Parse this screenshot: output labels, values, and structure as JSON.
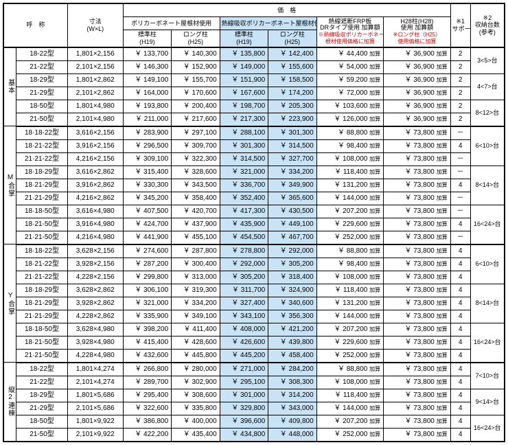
{
  "headers": {
    "name": "呼　称",
    "dim": "寸法\n(W×L)",
    "price": "価　格",
    "poly": "ポリカーボネート屋根材使用",
    "heat": "熱線吸収ポリカーボネート屋根材使用",
    "std": "標準柱\n(H19)",
    "long": "ロング柱\n(H25)",
    "frp": "熱線遮断FRP板\nDRタイプ使用 加算額",
    "frp_note": "※熱線吸収ポリカーボネート屋\n根材使用価格に加算",
    "h28": "H28柱(H28)\n使用 加算額",
    "h28_note": "※ロング柱（H25）\n使用価格に加算",
    "support": "※1\nサポート数",
    "storage": "※2\n収納台数\n(参考)"
  },
  "groups": [
    {
      "label": "基本",
      "storage_spans": [
        [
          2,
          "3<5>台"
        ],
        [
          2,
          "4<7>台"
        ],
        [
          2,
          "8<12>台"
        ]
      ],
      "rows": [
        [
          "18-22型",
          "1,801×2,156",
          "133,700",
          "140,300",
          "135,800",
          "142,400",
          "44,400",
          "36,900",
          "2"
        ],
        [
          "21-22型",
          "2,101×2,156",
          "146,300",
          "152,900",
          "149,000",
          "155,600",
          "54,000",
          "36,900",
          "2"
        ],
        [
          "18-29型",
          "1,801×2,862",
          "149,100",
          "155,700",
          "151,900",
          "158,500",
          "59,200",
          "36,900",
          "2"
        ],
        [
          "21-29型",
          "2,101×2,862",
          "164,000",
          "170,600",
          "167,600",
          "174,200",
          "72,000",
          "36,900",
          "2"
        ],
        [
          "18-50型",
          "1,801×4,980",
          "193,800",
          "200,400",
          "198,700",
          "205,300",
          "103,600",
          "36,900",
          "2"
        ],
        [
          "21-50型",
          "2,101×4,980",
          "211,000",
          "217,600",
          "217,300",
          "223,900",
          "126,000",
          "36,900",
          "2"
        ]
      ]
    },
    {
      "label": "M合掌",
      "storage_spans": [
        [
          3,
          "6<10>台"
        ],
        [
          3,
          "8<14>台"
        ],
        [
          3,
          "16<24>台"
        ]
      ],
      "rows": [
        [
          "18·18-22型",
          "3,616×2,156",
          "283,900",
          "297,100",
          "288,100",
          "301,300",
          "88,800",
          "73,800",
          "－"
        ],
        [
          "18·21-22型",
          "3,916×2,156",
          "296,500",
          "309,700",
          "301,300",
          "314,500",
          "98,400",
          "73,800",
          "4"
        ],
        [
          "21·21-22型",
          "4,216×2,156",
          "309,100",
          "322,300",
          "314,500",
          "327,700",
          "108,000",
          "73,800",
          "－"
        ],
        [
          "18·18-29型",
          "3,616×2,862",
          "315,400",
          "328,600",
          "321,000",
          "334,200",
          "118,400",
          "73,800",
          "－"
        ],
        [
          "18·21-29型",
          "3,916×2,862",
          "330,300",
          "343,500",
          "336,700",
          "349,900",
          "131,200",
          "73,800",
          "4"
        ],
        [
          "21·21-29型",
          "4,216×2,862",
          "345,200",
          "358,400",
          "352,400",
          "365,600",
          "144,000",
          "73,800",
          "－"
        ],
        [
          "18·18-50型",
          "3,616×4,980",
          "407,500",
          "420,700",
          "417,300",
          "430,500",
          "207,200",
          "73,800",
          "－"
        ],
        [
          "18·21-50型",
          "3,916×4,980",
          "424,700",
          "437,900",
          "435,900",
          "449,100",
          "229,600",
          "73,800",
          "4"
        ],
        [
          "21·21-50型",
          "4,216×4,980",
          "441,900",
          "455,100",
          "454,500",
          "467,700",
          "252,000",
          "73,800",
          "－"
        ]
      ]
    },
    {
      "label": "Y合掌",
      "storage_spans": [
        [
          3,
          "6<10>台"
        ],
        [
          3,
          "8<14>台"
        ],
        [
          3,
          "16<24>台"
        ]
      ],
      "rows": [
        [
          "18·18-22型",
          "3,628×2,156",
          "274,600",
          "287,800",
          "278,800",
          "292,000",
          "88,800",
          "73,800",
          "4"
        ],
        [
          "18·21-22型",
          "3,928×2,156",
          "287,200",
          "300,400",
          "292,000",
          "305,200",
          "98,400",
          "73,800",
          "4"
        ],
        [
          "21·21-22型",
          "4,228×2,156",
          "299,800",
          "313,000",
          "305,200",
          "318,400",
          "108,000",
          "73,800",
          "4"
        ],
        [
          "18·18-29型",
          "3,628×2,862",
          "306,100",
          "319,300",
          "311,700",
          "324,900",
          "118,400",
          "73,800",
          "4"
        ],
        [
          "18·21-29型",
          "3,928×2,862",
          "321,000",
          "334,200",
          "327,400",
          "340,600",
          "131,200",
          "73,800",
          "4"
        ],
        [
          "21·21-29型",
          "4,228×2,862",
          "335,900",
          "349,100",
          "343,100",
          "356,300",
          "144,000",
          "73,800",
          "4"
        ],
        [
          "18·18-50型",
          "3,628×4,980",
          "398,200",
          "411,400",
          "408,000",
          "421,200",
          "207,200",
          "73,800",
          "4"
        ],
        [
          "18·21-50型",
          "3,928×4,980",
          "415,400",
          "428,600",
          "426,600",
          "439,800",
          "229,600",
          "73,800",
          "4"
        ],
        [
          "21·21-50型",
          "4,228×4,980",
          "432,600",
          "445,800",
          "445,200",
          "458,400",
          "252,000",
          "73,800",
          "4"
        ]
      ]
    },
    {
      "label": "縦2連棟",
      "storage_spans": [
        [
          2,
          "7<10>台"
        ],
        [
          2,
          "9<14>台"
        ],
        [
          2,
          "16<24>台"
        ]
      ],
      "rows": [
        [
          "18-22型",
          "1,801×4,274",
          "266,800",
          "280,000",
          "271,000",
          "284,200",
          "88,800",
          "73,800",
          "4"
        ],
        [
          "21-22型",
          "2,101×4,274",
          "289,700",
          "302,900",
          "295,100",
          "308,300",
          "108,000",
          "73,800",
          "4"
        ],
        [
          "18-29型",
          "1,801×5,686",
          "295,400",
          "308,600",
          "301,000",
          "314,200",
          "118,400",
          "73,800",
          "4"
        ],
        [
          "21-29型",
          "2,101×5,686",
          "322,600",
          "335,800",
          "329,800",
          "343,000",
          "144,000",
          "73,800",
          "4"
        ],
        [
          "18-50型",
          "1,801×9,922",
          "386,800",
          "400,000",
          "396,600",
          "409,800",
          "207,200",
          "73,800",
          "4"
        ],
        [
          "21-50型",
          "2,101×9,922",
          "422,200",
          "435,400",
          "434,800",
          "448,000",
          "252,000",
          "73,800",
          "4"
        ]
      ]
    }
  ],
  "suffix": "加算",
  "yen": "￥"
}
